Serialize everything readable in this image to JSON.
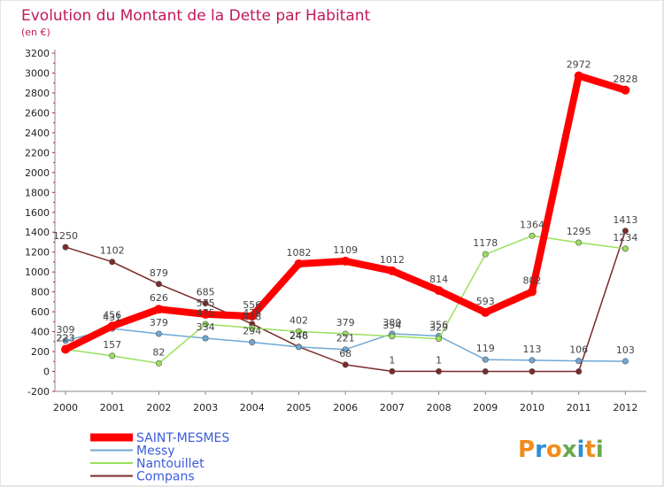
{
  "header": {
    "title": "Evolution du Montant de la Dette par Habitant",
    "subtitle": "(en €)"
  },
  "logo": {
    "text": "Proxiti",
    "letters": [
      "P",
      "r",
      "o",
      "x",
      "i",
      "t",
      "i"
    ]
  },
  "chart_data": {
    "type": "line",
    "title": "Evolution du Montant de la Dette par Habitant",
    "subtitle": "(en €)",
    "xlabel": "",
    "ylabel": "",
    "categories": [
      "2000",
      "2001",
      "2002",
      "2003",
      "2004",
      "2005",
      "2006",
      "2007",
      "2008",
      "2009",
      "2010",
      "2011",
      "2012"
    ],
    "ylim": [
      -200,
      3200
    ],
    "yticks": [
      -200,
      0,
      200,
      400,
      600,
      800,
      1000,
      1200,
      1400,
      1600,
      1800,
      2000,
      2200,
      2400,
      2600,
      2800,
      3000,
      3200
    ],
    "grid": false,
    "legend_position": "bottom-left",
    "series": [
      {
        "name": "SAINT-MESMES",
        "color": "#ff0000",
        "values": [
          223,
          456,
          626,
          575,
          556,
          1082,
          1109,
          1012,
          814,
          593,
          802,
          2972,
          2828
        ]
      },
      {
        "name": "Messy",
        "color": "#6fa8d6",
        "values": [
          309,
          431,
          379,
          334,
          294,
          246,
          221,
          380,
          356,
          119,
          113,
          106,
          103
        ]
      },
      {
        "name": "Nantouillet",
        "color": "#99e05c",
        "values": [
          223,
          157,
          82,
          475,
          438,
          402,
          379,
          354,
          329,
          1178,
          1364,
          1295,
          1234
        ]
      },
      {
        "name": "Compans",
        "color": "#7a2a2a",
        "values": [
          1250,
          1102,
          879,
          685,
          478,
          248,
          68,
          1,
          1,
          null,
          null,
          null,
          1413
        ]
      }
    ]
  }
}
